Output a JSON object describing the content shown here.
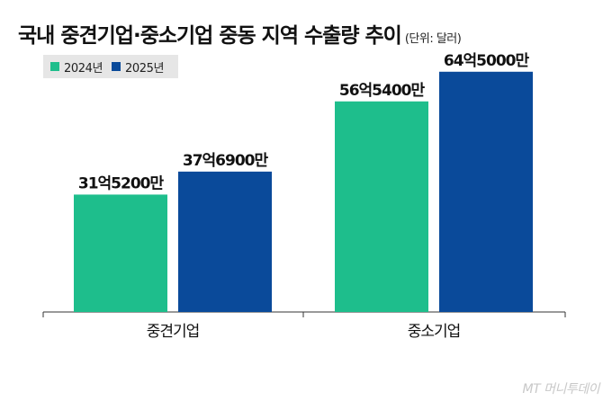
{
  "title": "국내 중견기업·중소기업 중동 지역 수출량 추이",
  "unit": "(단위: 달러)",
  "watermark": "MT 머니투데이",
  "chart_data": {
    "type": "bar",
    "categories": [
      "중견기업",
      "중소기업"
    ],
    "series": [
      {
        "name": "2024년",
        "color": "#1ebe8c",
        "values": [
          3152000000,
          5654000000
        ],
        "labels": [
          "31억5200만",
          "56억5400만"
        ]
      },
      {
        "name": "2025년",
        "color": "#0a4a9a",
        "values": [
          3769000000,
          6450000000
        ],
        "labels": [
          "37억6900만",
          "64억5000만"
        ]
      }
    ],
    "ylim": [
      0,
      7000000000
    ],
    "grid": false,
    "legend": "top-left"
  }
}
